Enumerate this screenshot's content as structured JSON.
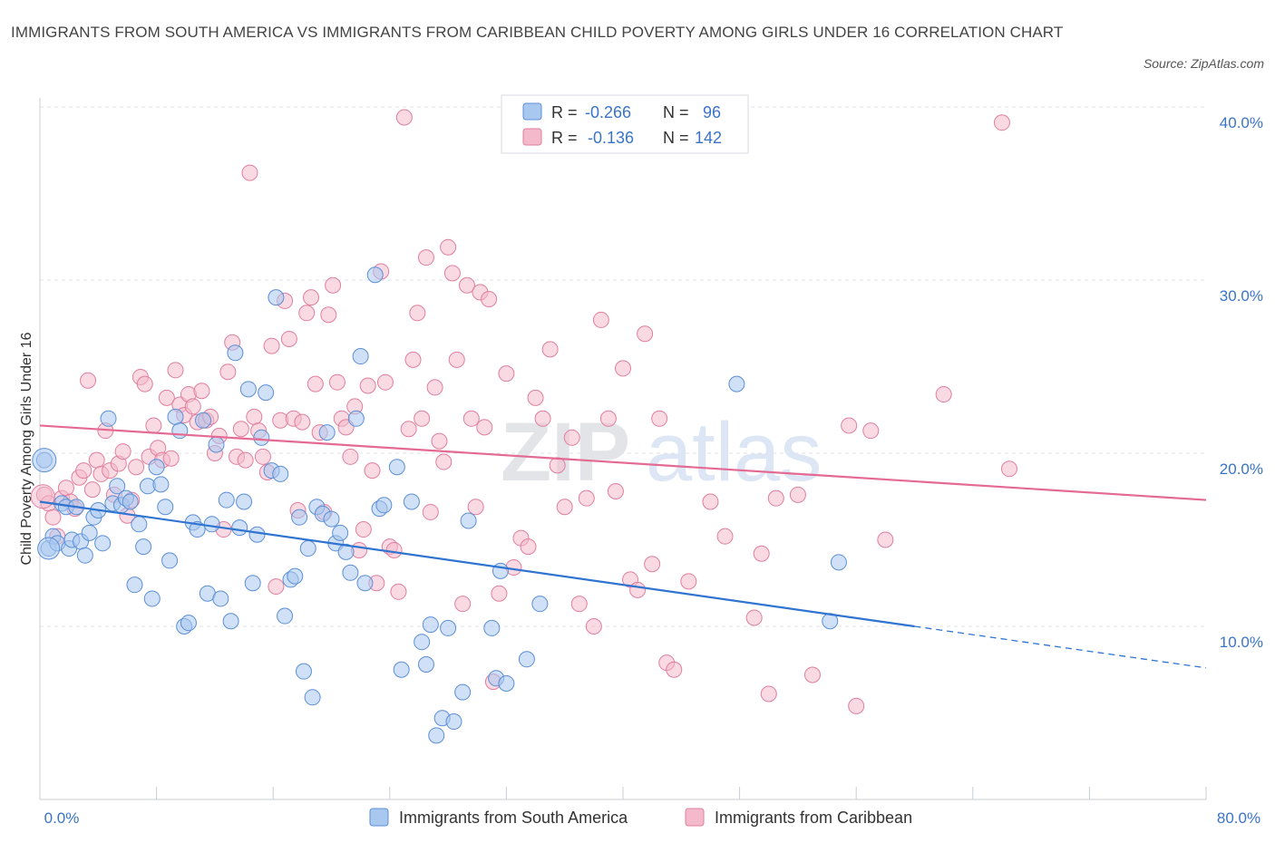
{
  "title": "IMMIGRANTS FROM SOUTH AMERICA VS IMMIGRANTS FROM CARIBBEAN CHILD POVERTY AMONG GIRLS UNDER 16 CORRELATION CHART",
  "source": "Source: ZipAtlas.com",
  "watermark": {
    "zip": "ZIP",
    "atlas": "atlas"
  },
  "colors": {
    "blue_fill": "#a9c8f0",
    "blue_stroke": "#5b8fd6",
    "blue_line": "#2f74d0",
    "pink_fill": "#f4b9cb",
    "pink_stroke": "#e07f9f",
    "pink_line": "#e46a93",
    "tick": "#3a74c9",
    "grid": "#dde1e7"
  },
  "legend": {
    "rows": [
      {
        "r_label": "R =",
        "r_value": "-0.266",
        "n_label": "N =",
        "n_value": "96"
      },
      {
        "r_label": "R =",
        "r_value": "-0.136",
        "n_label": "N =",
        "n_value": "142"
      }
    ]
  },
  "bottom_legend": [
    "Immigrants from South America",
    "Immigrants from Caribbean"
  ],
  "chart_data": {
    "type": "scatter",
    "ylabel": "Child Poverty Among Girls Under 16",
    "xlim": [
      0,
      80
    ],
    "ylim": [
      0,
      40
    ],
    "x_tick_labels": [
      "0.0%",
      "80.0%"
    ],
    "y_ticks": [
      10,
      20,
      30,
      40
    ],
    "y_tick_labels": [
      "10.0%",
      "20.0%",
      "30.0%",
      "40.0%"
    ],
    "grid": true,
    "series": [
      {
        "name": "Immigrants from South America",
        "trend": {
          "x0": 0,
          "y0": 17.2,
          "x1": 60,
          "y1": 10.0,
          "x_dash_end": 80,
          "y_dash_end": 7.6
        },
        "points": [
          [
            0.3,
            19.6
          ],
          [
            0.6,
            14.5
          ],
          [
            0.9,
            15.2
          ],
          [
            1.2,
            14.8
          ],
          [
            1.5,
            17.1
          ],
          [
            1.8,
            16.9
          ],
          [
            2.0,
            14.5
          ],
          [
            2.2,
            15.0
          ],
          [
            2.5,
            16.9
          ],
          [
            2.8,
            14.9
          ],
          [
            3.1,
            14.1
          ],
          [
            3.4,
            15.4
          ],
          [
            3.7,
            16.3
          ],
          [
            4.0,
            16.7
          ],
          [
            4.3,
            14.8
          ],
          [
            4.7,
            22.0
          ],
          [
            5.0,
            17.1
          ],
          [
            5.3,
            18.1
          ],
          [
            5.6,
            17.0
          ],
          [
            5.9,
            17.4
          ],
          [
            6.2,
            17.2
          ],
          [
            6.5,
            12.4
          ],
          [
            6.8,
            15.9
          ],
          [
            7.1,
            14.6
          ],
          [
            7.4,
            18.1
          ],
          [
            7.7,
            11.6
          ],
          [
            8.0,
            19.2
          ],
          [
            8.3,
            18.2
          ],
          [
            8.6,
            16.9
          ],
          [
            8.9,
            13.8
          ],
          [
            9.3,
            22.1
          ],
          [
            9.6,
            21.3
          ],
          [
            9.9,
            10.0
          ],
          [
            10.2,
            10.2
          ],
          [
            10.5,
            16.0
          ],
          [
            10.8,
            15.6
          ],
          [
            11.2,
            21.9
          ],
          [
            11.5,
            11.9
          ],
          [
            11.8,
            15.9
          ],
          [
            12.1,
            20.5
          ],
          [
            12.4,
            11.6
          ],
          [
            12.8,
            17.3
          ],
          [
            13.1,
            10.3
          ],
          [
            13.4,
            25.8
          ],
          [
            13.7,
            15.7
          ],
          [
            14.0,
            17.2
          ],
          [
            14.3,
            23.7
          ],
          [
            14.6,
            12.5
          ],
          [
            14.9,
            15.3
          ],
          [
            15.2,
            20.9
          ],
          [
            15.5,
            23.5
          ],
          [
            15.9,
            19.0
          ],
          [
            16.2,
            29.0
          ],
          [
            16.5,
            18.8
          ],
          [
            16.8,
            10.6
          ],
          [
            17.2,
            12.7
          ],
          [
            17.5,
            12.9
          ],
          [
            17.8,
            16.3
          ],
          [
            18.1,
            7.4
          ],
          [
            18.4,
            14.5
          ],
          [
            18.7,
            5.9
          ],
          [
            19.0,
            16.9
          ],
          [
            19.4,
            16.5
          ],
          [
            19.7,
            21.2
          ],
          [
            20.0,
            16.2
          ],
          [
            20.3,
            14.8
          ],
          [
            20.6,
            15.4
          ],
          [
            21.0,
            14.3
          ],
          [
            21.3,
            13.1
          ],
          [
            21.7,
            22.0
          ],
          [
            22.0,
            25.6
          ],
          [
            22.3,
            12.5
          ],
          [
            23.0,
            30.3
          ],
          [
            23.3,
            16.8
          ],
          [
            23.6,
            17.0
          ],
          [
            24.5,
            19.2
          ],
          [
            24.8,
            7.5
          ],
          [
            25.5,
            17.2
          ],
          [
            26.2,
            9.1
          ],
          [
            26.5,
            7.8
          ],
          [
            26.8,
            10.1
          ],
          [
            27.2,
            3.7
          ],
          [
            27.6,
            4.7
          ],
          [
            28.0,
            9.9
          ],
          [
            28.4,
            4.5
          ],
          [
            29.0,
            6.2
          ],
          [
            29.4,
            16.1
          ],
          [
            31.0,
            9.9
          ],
          [
            31.3,
            7.0
          ],
          [
            31.6,
            13.2
          ],
          [
            32.0,
            6.7
          ],
          [
            33.4,
            8.1
          ],
          [
            34.3,
            11.3
          ],
          [
            47.8,
            24.0
          ],
          [
            54.2,
            10.3
          ],
          [
            54.8,
            13.7
          ]
        ]
      },
      {
        "name": "Immigrants from Caribbean",
        "trend": {
          "x0": 0,
          "y0": 21.6,
          "x1": 80,
          "y1": 17.3
        },
        "points": [
          [
            0.3,
            17.6
          ],
          [
            0.6,
            17.1
          ],
          [
            0.9,
            16.3
          ],
          [
            1.2,
            15.2
          ],
          [
            1.5,
            17.4
          ],
          [
            1.8,
            18.0
          ],
          [
            2.1,
            17.2
          ],
          [
            2.4,
            16.8
          ],
          [
            2.7,
            18.6
          ],
          [
            3.0,
            19.0
          ],
          [
            3.3,
            24.2
          ],
          [
            3.6,
            17.9
          ],
          [
            3.9,
            19.6
          ],
          [
            4.2,
            18.8
          ],
          [
            4.5,
            21.3
          ],
          [
            4.8,
            19.0
          ],
          [
            5.1,
            17.6
          ],
          [
            5.4,
            19.4
          ],
          [
            5.7,
            20.1
          ],
          [
            6.0,
            16.4
          ],
          [
            6.3,
            17.3
          ],
          [
            6.6,
            19.2
          ],
          [
            6.9,
            24.4
          ],
          [
            7.2,
            24.0
          ],
          [
            7.5,
            19.8
          ],
          [
            7.8,
            21.6
          ],
          [
            8.1,
            20.3
          ],
          [
            8.4,
            19.6
          ],
          [
            8.7,
            23.2
          ],
          [
            9.0,
            19.7
          ],
          [
            9.3,
            24.8
          ],
          [
            9.6,
            22.8
          ],
          [
            9.9,
            22.2
          ],
          [
            10.2,
            23.4
          ],
          [
            10.5,
            22.7
          ],
          [
            10.8,
            21.8
          ],
          [
            11.1,
            23.6
          ],
          [
            11.4,
            21.9
          ],
          [
            11.7,
            22.1
          ],
          [
            12.0,
            20.0
          ],
          [
            12.3,
            21.0
          ],
          [
            12.6,
            15.6
          ],
          [
            12.9,
            24.7
          ],
          [
            13.2,
            26.4
          ],
          [
            13.5,
            19.8
          ],
          [
            13.8,
            21.4
          ],
          [
            14.1,
            19.6
          ],
          [
            14.4,
            36.2
          ],
          [
            14.7,
            22.1
          ],
          [
            15.0,
            21.3
          ],
          [
            15.3,
            19.8
          ],
          [
            15.6,
            18.9
          ],
          [
            15.9,
            26.2
          ],
          [
            16.2,
            12.3
          ],
          [
            16.5,
            21.9
          ],
          [
            16.8,
            28.8
          ],
          [
            17.1,
            26.6
          ],
          [
            17.4,
            22.0
          ],
          [
            17.7,
            16.7
          ],
          [
            18.0,
            21.8
          ],
          [
            18.3,
            28.1
          ],
          [
            18.6,
            29.0
          ],
          [
            18.9,
            24.0
          ],
          [
            19.2,
            21.2
          ],
          [
            19.5,
            16.6
          ],
          [
            19.8,
            28.0
          ],
          [
            20.1,
            29.7
          ],
          [
            20.4,
            24.1
          ],
          [
            20.7,
            22.0
          ],
          [
            21.0,
            21.5
          ],
          [
            21.3,
            19.8
          ],
          [
            21.6,
            22.7
          ],
          [
            21.9,
            14.4
          ],
          [
            22.2,
            15.6
          ],
          [
            22.5,
            23.9
          ],
          [
            22.8,
            19.0
          ],
          [
            23.1,
            12.5
          ],
          [
            23.4,
            30.5
          ],
          [
            23.7,
            24.1
          ],
          [
            24.0,
            14.6
          ],
          [
            24.3,
            14.4
          ],
          [
            24.6,
            12.0
          ],
          [
            25.0,
            39.4
          ],
          [
            25.3,
            21.4
          ],
          [
            25.6,
            25.4
          ],
          [
            25.9,
            28.1
          ],
          [
            26.2,
            22.0
          ],
          [
            26.5,
            31.3
          ],
          [
            26.8,
            16.6
          ],
          [
            27.1,
            23.8
          ],
          [
            27.4,
            20.7
          ],
          [
            27.7,
            19.5
          ],
          [
            28.0,
            31.9
          ],
          [
            28.3,
            30.4
          ],
          [
            28.6,
            25.4
          ],
          [
            29.0,
            11.3
          ],
          [
            29.3,
            29.7
          ],
          [
            29.6,
            22.0
          ],
          [
            29.9,
            16.9
          ],
          [
            30.2,
            29.3
          ],
          [
            30.5,
            21.5
          ],
          [
            30.8,
            28.9
          ],
          [
            31.1,
            6.8
          ],
          [
            31.5,
            11.9
          ],
          [
            32.0,
            24.6
          ],
          [
            32.5,
            13.4
          ],
          [
            33.0,
            15.1
          ],
          [
            33.5,
            14.6
          ],
          [
            34.0,
            23.2
          ],
          [
            34.5,
            22.0
          ],
          [
            35.0,
            26.0
          ],
          [
            35.5,
            19.3
          ],
          [
            36.0,
            16.9
          ],
          [
            36.5,
            20.9
          ],
          [
            37.0,
            11.3
          ],
          [
            37.5,
            17.4
          ],
          [
            38.0,
            10.0
          ],
          [
            38.5,
            27.7
          ],
          [
            39.0,
            22.0
          ],
          [
            39.5,
            17.8
          ],
          [
            40.0,
            24.9
          ],
          [
            40.5,
            12.7
          ],
          [
            41.0,
            12.1
          ],
          [
            41.5,
            26.9
          ],
          [
            42.0,
            13.6
          ],
          [
            42.5,
            22.0
          ],
          [
            43.0,
            7.9
          ],
          [
            43.5,
            7.5
          ],
          [
            44.5,
            12.6
          ],
          [
            46.0,
            17.2
          ],
          [
            47.0,
            15.2
          ],
          [
            49.0,
            10.5
          ],
          [
            49.5,
            14.2
          ],
          [
            50.0,
            6.1
          ],
          [
            50.5,
            17.4
          ],
          [
            52.0,
            17.6
          ],
          [
            53.0,
            7.2
          ],
          [
            55.5,
            21.6
          ],
          [
            56.0,
            5.4
          ],
          [
            57.0,
            21.3
          ],
          [
            58.0,
            15.0
          ],
          [
            62.0,
            23.4
          ],
          [
            66.0,
            39.1
          ],
          [
            66.5,
            19.1
          ]
        ]
      }
    ]
  }
}
